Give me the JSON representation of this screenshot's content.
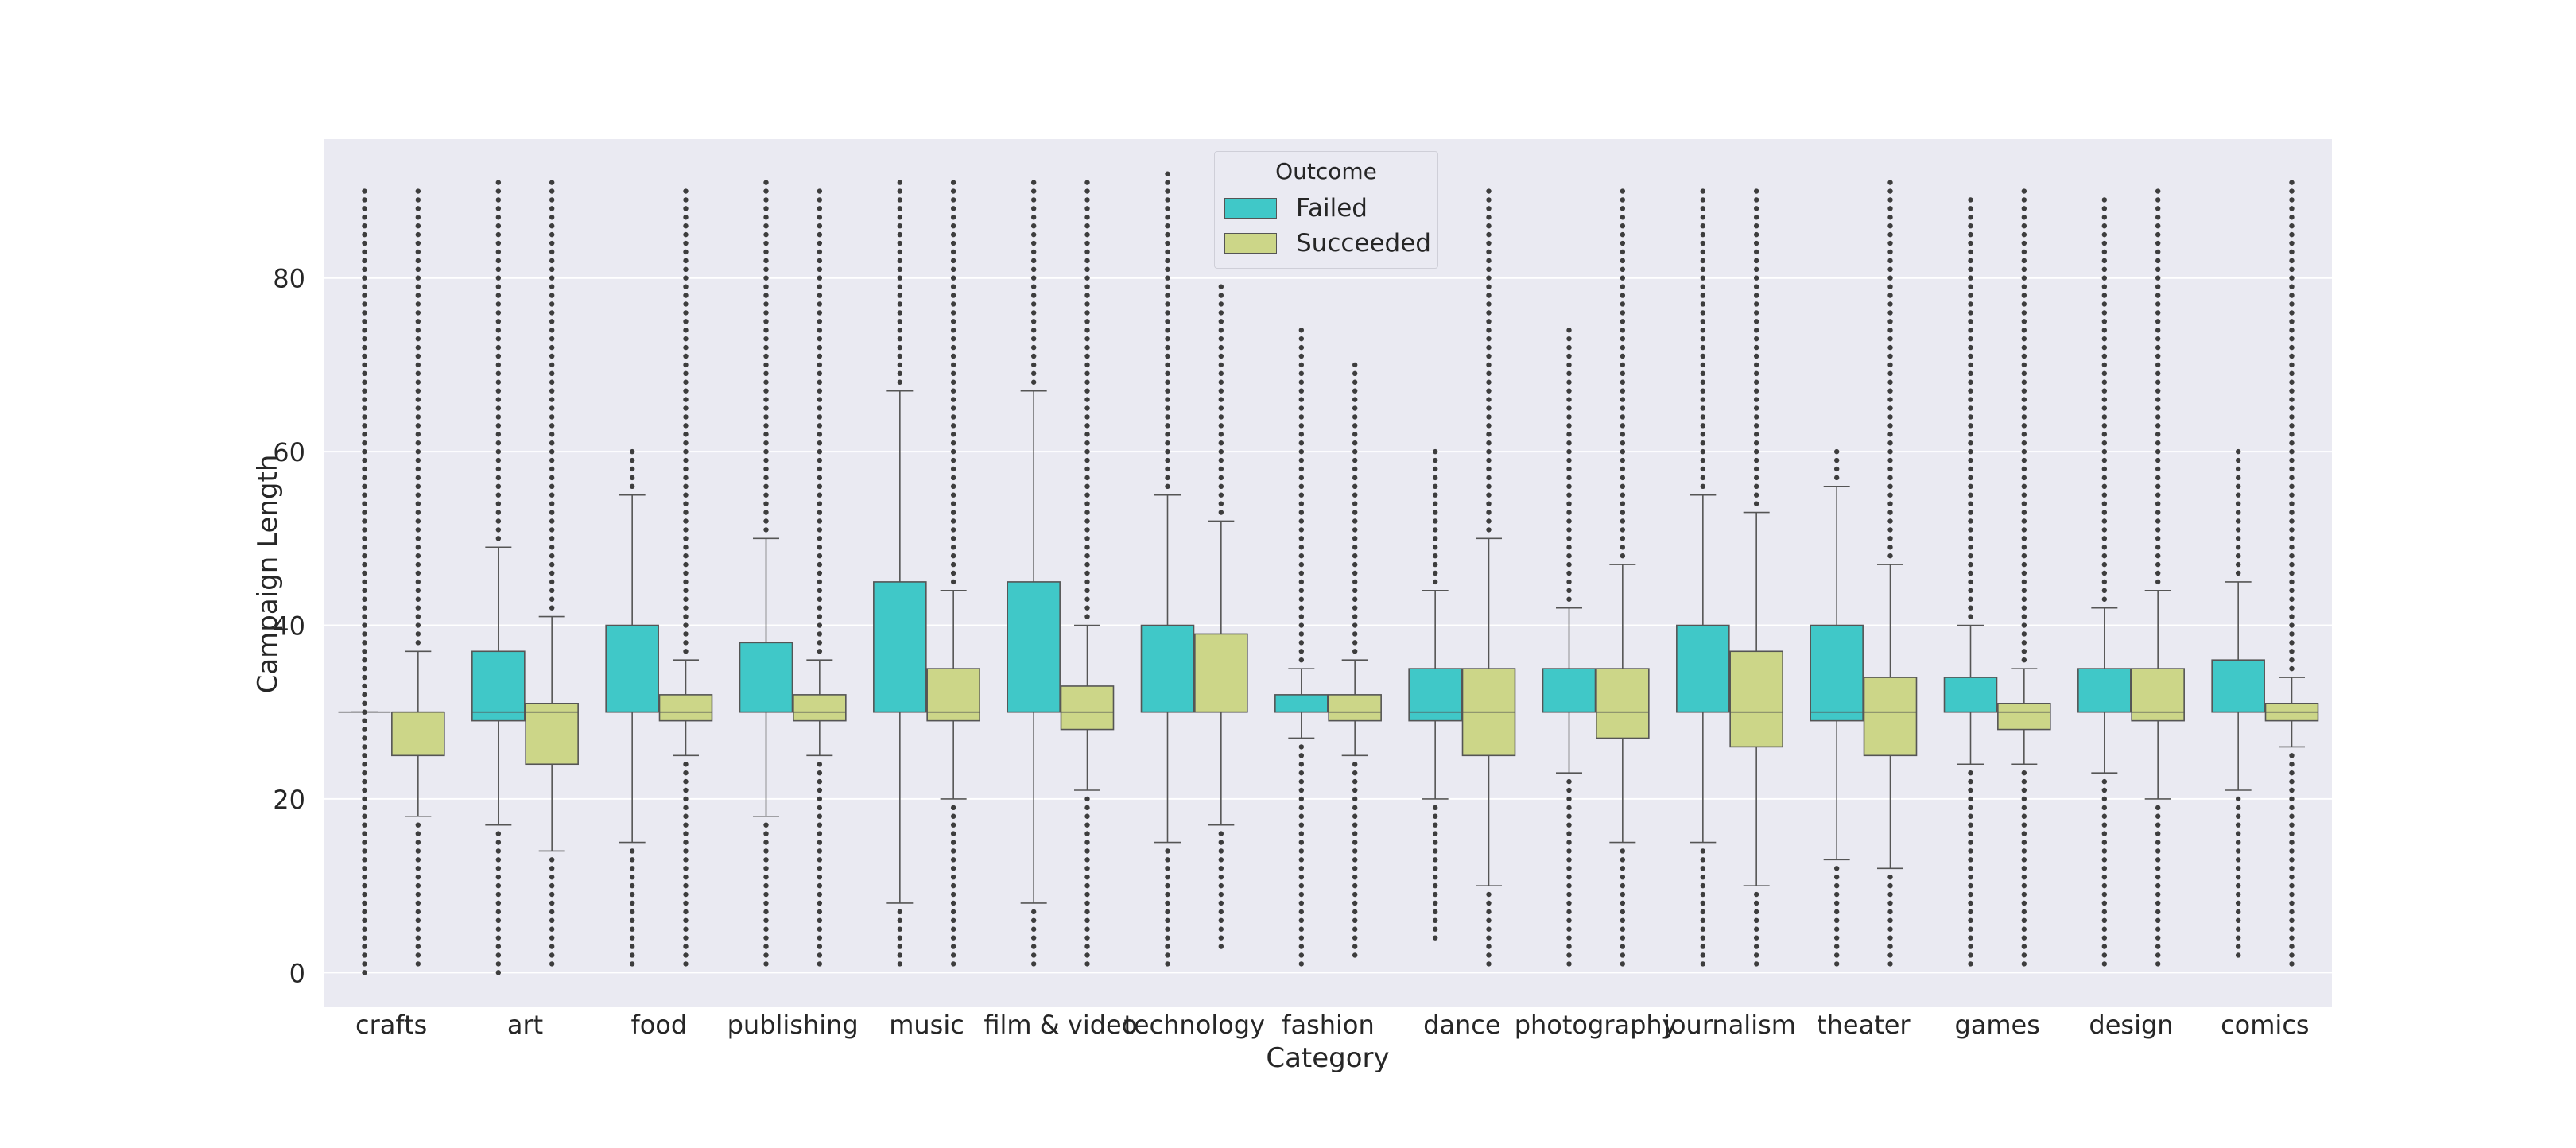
{
  "chart_data": {
    "type": "boxplot",
    "xlabel": "Category",
    "ylabel": "Campaign Length",
    "ylim": [
      -4,
      96
    ],
    "yticks": [
      0,
      20,
      40,
      60,
      80
    ],
    "grid": true,
    "legend": {
      "title": "Outcome",
      "placement": "top-center",
      "entries": [
        {
          "label": "Failed",
          "color": "#40c8c8"
        },
        {
          "label": "Succeeded",
          "color": "#ccd688"
        }
      ]
    },
    "categories": [
      "crafts",
      "art",
      "food",
      "publishing",
      "music",
      "film & video",
      "technology",
      "fashion",
      "dance",
      "photography",
      "journalism",
      "theater",
      "games",
      "design",
      "comics"
    ],
    "series": [
      {
        "name": "Failed",
        "color": "#40c8c8",
        "boxes": [
          {
            "q1": 30,
            "median": 30,
            "q3": 30,
            "whisker_low": 30,
            "whisker_high": 30,
            "outliers": [
              0,
              90
            ]
          },
          {
            "q1": 29,
            "median": 30,
            "q3": 37,
            "whisker_low": 17,
            "whisker_high": 49,
            "outliers": [
              0,
              16,
              50,
              91
            ]
          },
          {
            "q1": 30,
            "median": 30,
            "q3": 40,
            "whisker_low": 15,
            "whisker_high": 55,
            "outliers": [
              1,
              14,
              56,
              60
            ]
          },
          {
            "q1": 30,
            "median": 30,
            "q3": 38,
            "whisker_low": 18,
            "whisker_high": 50,
            "outliers": [
              1,
              17,
              51,
              91
            ]
          },
          {
            "q1": 30,
            "median": 30,
            "q3": 45,
            "whisker_low": 8,
            "whisker_high": 67,
            "outliers": [
              1,
              7,
              68,
              91
            ]
          },
          {
            "q1": 30,
            "median": 30,
            "q3": 45,
            "whisker_low": 8,
            "whisker_high": 67,
            "outliers": [
              1,
              7,
              68,
              91
            ]
          },
          {
            "q1": 30,
            "median": 30,
            "q3": 40,
            "whisker_low": 15,
            "whisker_high": 55,
            "outliers": [
              1,
              14,
              56,
              92
            ]
          },
          {
            "q1": 30,
            "median": 30,
            "q3": 32,
            "whisker_low": 27,
            "whisker_high": 35,
            "outliers": [
              1,
              26,
              36,
              74
            ]
          },
          {
            "q1": 29,
            "median": 30,
            "q3": 35,
            "whisker_low": 20,
            "whisker_high": 44,
            "outliers": [
              4,
              19,
              45,
              60
            ]
          },
          {
            "q1": 30,
            "median": 30,
            "q3": 35,
            "whisker_low": 23,
            "whisker_high": 42,
            "outliers": [
              1,
              22,
              43,
              74
            ]
          },
          {
            "q1": 30,
            "median": 30,
            "q3": 40,
            "whisker_low": 15,
            "whisker_high": 55,
            "outliers": [
              1,
              14,
              56,
              90
            ]
          },
          {
            "q1": 29,
            "median": 30,
            "q3": 40,
            "whisker_low": 13,
            "whisker_high": 56,
            "outliers": [
              1,
              12,
              57,
              60
            ]
          },
          {
            "q1": 30,
            "median": 30,
            "q3": 34,
            "whisker_low": 24,
            "whisker_high": 40,
            "outliers": [
              1,
              23,
              41,
              89
            ]
          },
          {
            "q1": 30,
            "median": 30,
            "q3": 35,
            "whisker_low": 23,
            "whisker_high": 42,
            "outliers": [
              1,
              22,
              43,
              89
            ]
          },
          {
            "q1": 30,
            "median": 30,
            "q3": 36,
            "whisker_low": 21,
            "whisker_high": 45,
            "outliers": [
              2,
              20,
              46,
              60
            ]
          }
        ]
      },
      {
        "name": "Succeeded",
        "color": "#ccd688",
        "boxes": [
          {
            "q1": 25,
            "median": 30,
            "q3": 30,
            "whisker_low": 18,
            "whisker_high": 37,
            "outliers": [
              1,
              17,
              38,
              90
            ]
          },
          {
            "q1": 24,
            "median": 30,
            "q3": 31,
            "whisker_low": 14,
            "whisker_high": 41,
            "outliers": [
              1,
              13,
              42,
              91
            ]
          },
          {
            "q1": 29,
            "median": 30,
            "q3": 32,
            "whisker_low": 25,
            "whisker_high": 36,
            "outliers": [
              1,
              24,
              37,
              90
            ]
          },
          {
            "q1": 29,
            "median": 30,
            "q3": 32,
            "whisker_low": 25,
            "whisker_high": 36,
            "outliers": [
              1,
              24,
              37,
              90
            ]
          },
          {
            "q1": 29,
            "median": 30,
            "q3": 35,
            "whisker_low": 20,
            "whisker_high": 44,
            "outliers": [
              1,
              19,
              45,
              91
            ]
          },
          {
            "q1": 28,
            "median": 30,
            "q3": 33,
            "whisker_low": 21,
            "whisker_high": 40,
            "outliers": [
              1,
              20,
              41,
              91
            ]
          },
          {
            "q1": 30,
            "median": 30,
            "q3": 39,
            "whisker_low": 17,
            "whisker_high": 52,
            "outliers": [
              3,
              16,
              53,
              79
            ]
          },
          {
            "q1": 29,
            "median": 30,
            "q3": 32,
            "whisker_low": 25,
            "whisker_high": 36,
            "outliers": [
              2,
              24,
              37,
              70
            ]
          },
          {
            "q1": 25,
            "median": 30,
            "q3": 35,
            "whisker_low": 10,
            "whisker_high": 50,
            "outliers": [
              1,
              9,
              51,
              90
            ]
          },
          {
            "q1": 27,
            "median": 30,
            "q3": 35,
            "whisker_low": 15,
            "whisker_high": 47,
            "outliers": [
              1,
              14,
              48,
              90
            ]
          },
          {
            "q1": 26,
            "median": 30,
            "q3": 37,
            "whisker_low": 10,
            "whisker_high": 53,
            "outliers": [
              1,
              9,
              54,
              90
            ]
          },
          {
            "q1": 25,
            "median": 30,
            "q3": 34,
            "whisker_low": 12,
            "whisker_high": 47,
            "outliers": [
              1,
              11,
              48,
              91
            ]
          },
          {
            "q1": 28,
            "median": 30,
            "q3": 31,
            "whisker_low": 24,
            "whisker_high": 35,
            "outliers": [
              1,
              23,
              36,
              90
            ]
          },
          {
            "q1": 29,
            "median": 30,
            "q3": 35,
            "whisker_low": 20,
            "whisker_high": 44,
            "outliers": [
              1,
              19,
              45,
              90
            ]
          },
          {
            "q1": 29,
            "median": 30,
            "q3": 31,
            "whisker_low": 26,
            "whisker_high": 34,
            "outliers": [
              1,
              25,
              35,
              91
            ]
          }
        ]
      }
    ]
  }
}
